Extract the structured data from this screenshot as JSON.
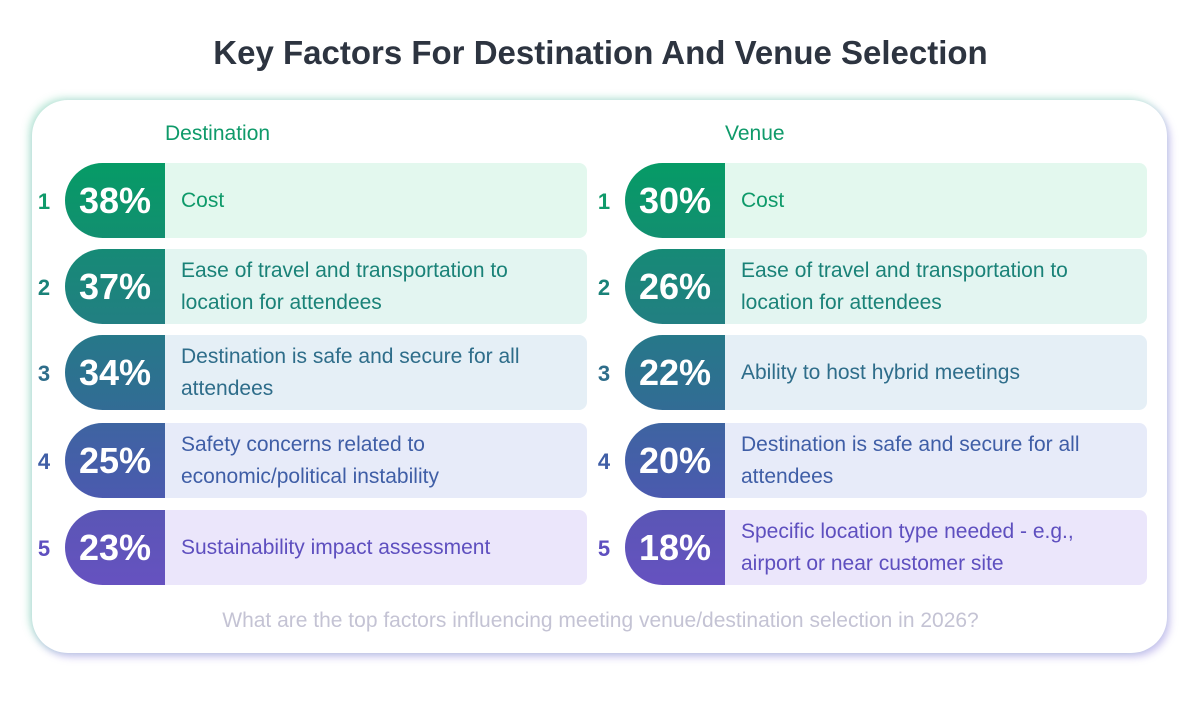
{
  "title": "Key Factors For Destination And Venue Selection",
  "footnote": "What are the top factors influencing meeting venue/destination selection in 2026?",
  "colors": {
    "pill": [
      "#069b66",
      "#188a78",
      "#2a7589",
      "#4461a5",
      "#6452bf"
    ],
    "text": [
      "#0f9a6a",
      "#1a8278",
      "#2e6d8a",
      "#3f5ea6",
      "#5e4fbf"
    ],
    "bg": [
      "#e3f8ee",
      "#e3f5f1",
      "#e5eff6",
      "#e7ebf9",
      "#ebe6fb"
    ]
  },
  "chart_data": {
    "type": "table",
    "title": "Key Factors For Destination And Venue Selection",
    "columns": [
      {
        "name": "Destination",
        "items": [
          {
            "rank": "1",
            "value": "38%",
            "label": "Cost"
          },
          {
            "rank": "2",
            "value": "37%",
            "label": "Ease of travel and transportation to location for attendees"
          },
          {
            "rank": "3",
            "value": "34%",
            "label": "Destination is safe and secure for all attendees"
          },
          {
            "rank": "4",
            "value": "25%",
            "label": "Safety concerns related to economic/political instability"
          },
          {
            "rank": "5",
            "value": "23%",
            "label": "Sustainability impact assessment"
          }
        ]
      },
      {
        "name": "Venue",
        "items": [
          {
            "rank": "1",
            "value": "30%",
            "label": "Cost"
          },
          {
            "rank": "2",
            "value": "26%",
            "label": "Ease of travel and transportation to location for attendees"
          },
          {
            "rank": "3",
            "value": "22%",
            "label": "Ability to host hybrid meetings"
          },
          {
            "rank": "4",
            "value": "20%",
            "label": "Destination is safe and secure for all attendees"
          },
          {
            "rank": "5",
            "value": "18%",
            "label": "Specific location type needed - e.g., airport or near customer site"
          }
        ]
      }
    ]
  }
}
